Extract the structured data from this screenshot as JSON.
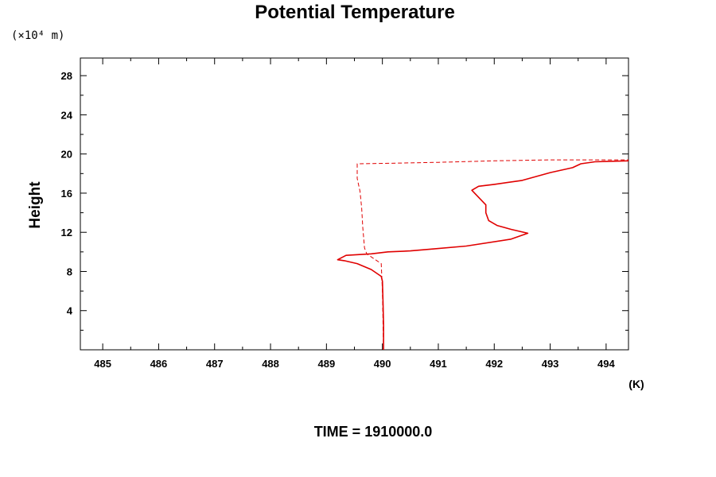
{
  "chart_data": {
    "type": "line",
    "title": "Potential Temperature",
    "y_unit_label": "(×10⁴ m)",
    "ylabel": "Height",
    "x_unit_label": "(K)",
    "footer": "TIME = 1910000.0",
    "xlim": [
      484.6,
      494.4
    ],
    "ylim": [
      0.0,
      29.8
    ],
    "x_ticks": [
      "485",
      "486",
      "487",
      "488",
      "489",
      "490",
      "491",
      "492",
      "493",
      "494"
    ],
    "y_ticks": [
      "4",
      "8",
      "12",
      "16",
      "20",
      "24",
      "28"
    ],
    "line_color": "#e00000",
    "series": [
      {
        "style": "solid",
        "points": [
          [
            490.02,
            0.0
          ],
          [
            490.02,
            2.5
          ],
          [
            490.01,
            5.0
          ],
          [
            490.0,
            7.0
          ],
          [
            489.98,
            7.5
          ],
          [
            489.8,
            8.2
          ],
          [
            489.55,
            8.8
          ],
          [
            489.32,
            9.1
          ],
          [
            489.2,
            9.2
          ],
          [
            489.35,
            9.65
          ],
          [
            489.8,
            9.8
          ],
          [
            490.1,
            10.0
          ],
          [
            490.5,
            10.1
          ],
          [
            490.9,
            10.3
          ],
          [
            491.5,
            10.6
          ],
          [
            492.3,
            11.3
          ],
          [
            492.6,
            11.9
          ],
          [
            492.3,
            12.3
          ],
          [
            492.05,
            12.7
          ],
          [
            491.9,
            13.2
          ],
          [
            491.85,
            14.0
          ],
          [
            491.85,
            14.8
          ],
          [
            491.6,
            16.3
          ],
          [
            491.72,
            16.7
          ],
          [
            492.0,
            16.9
          ],
          [
            492.5,
            17.3
          ],
          [
            493.0,
            18.1
          ],
          [
            493.4,
            18.6
          ],
          [
            493.55,
            19.0
          ],
          [
            493.8,
            19.2
          ],
          [
            494.4,
            19.3
          ]
        ]
      },
      {
        "style": "dashed",
        "points": [
          [
            490.02,
            0.0
          ],
          [
            490.01,
            3.0
          ],
          [
            490.0,
            6.0
          ],
          [
            489.98,
            8.8
          ],
          [
            489.85,
            9.3
          ],
          [
            489.72,
            9.8
          ],
          [
            489.68,
            10.4
          ],
          [
            489.65,
            12.5
          ],
          [
            489.63,
            14.5
          ],
          [
            489.6,
            16.2
          ],
          [
            489.55,
            17.5
          ],
          [
            489.55,
            19.0
          ],
          [
            490.1,
            19.05
          ],
          [
            491.0,
            19.15
          ],
          [
            492.0,
            19.3
          ],
          [
            493.0,
            19.4
          ],
          [
            494.4,
            19.4
          ]
        ]
      }
    ],
    "grid": false
  }
}
